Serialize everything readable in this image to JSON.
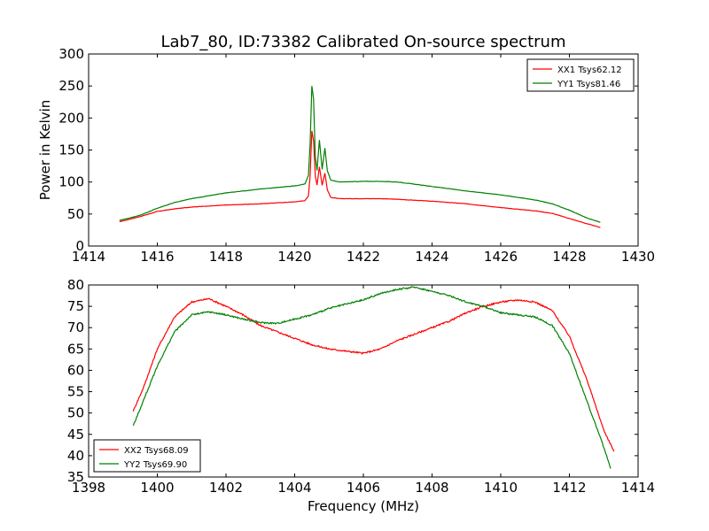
{
  "figure_title": "Lab7_80, ID:73382 Calibrated On-source spectrum",
  "colors": {
    "red": "#ff0000",
    "green": "#008000"
  },
  "chart_data": [
    {
      "type": "line",
      "title": "Lab7_80, ID:73382 Calibrated On-source spectrum",
      "xlabel": "",
      "ylabel": "Power in Kelvin",
      "xlim": [
        1414,
        1430
      ],
      "ylim": [
        0,
        300
      ],
      "xticks": [
        1414,
        1416,
        1418,
        1420,
        1422,
        1424,
        1426,
        1428,
        1430
      ],
      "yticks": [
        0,
        50,
        100,
        150,
        200,
        250,
        300
      ],
      "legend_position": "upper right",
      "grid": false,
      "series": [
        {
          "name": "XX1 Tsys62.12",
          "color": "#ff0000",
          "points": [
            [
              1414.9,
              38
            ],
            [
              1415.5,
              46
            ],
            [
              1416,
              54
            ],
            [
              1416.5,
              58
            ],
            [
              1417,
              61
            ],
            [
              1418,
              64
            ],
            [
              1419,
              66
            ],
            [
              1420,
              69
            ],
            [
              1420.3,
              71
            ],
            [
              1420.4,
              78
            ],
            [
              1420.45,
              110
            ],
            [
              1420.5,
              180
            ],
            [
              1420.55,
              165
            ],
            [
              1420.6,
              110
            ],
            [
              1420.65,
              95
            ],
            [
              1420.72,
              124
            ],
            [
              1420.8,
              95
            ],
            [
              1420.88,
              114
            ],
            [
              1420.95,
              88
            ],
            [
              1421.05,
              76
            ],
            [
              1421.3,
              74
            ],
            [
              1422,
              74
            ],
            [
              1422.5,
              74
            ],
            [
              1423,
              73
            ],
            [
              1424,
              70
            ],
            [
              1425,
              66
            ],
            [
              1426,
              60
            ],
            [
              1427,
              55
            ],
            [
              1427.5,
              51
            ],
            [
              1428,
              43
            ],
            [
              1428.5,
              35
            ],
            [
              1428.9,
              29
            ]
          ]
        },
        {
          "name": "YY1 Tsys81.46",
          "color": "#008000",
          "points": [
            [
              1414.9,
              40
            ],
            [
              1415.5,
              48
            ],
            [
              1416,
              59
            ],
            [
              1416.5,
              68
            ],
            [
              1417,
              74
            ],
            [
              1418,
              83
            ],
            [
              1419,
              89
            ],
            [
              1420,
              94
            ],
            [
              1420.3,
              97
            ],
            [
              1420.4,
              110
            ],
            [
              1420.45,
              160
            ],
            [
              1420.5,
              250
            ],
            [
              1420.55,
              230
            ],
            [
              1420.6,
              140
            ],
            [
              1420.65,
              118
            ],
            [
              1420.72,
              166
            ],
            [
              1420.8,
              120
            ],
            [
              1420.88,
              153
            ],
            [
              1420.95,
              118
            ],
            [
              1421.05,
              103
            ],
            [
              1421.3,
              100
            ],
            [
              1422,
              101
            ],
            [
              1422.5,
              101
            ],
            [
              1423,
              100
            ],
            [
              1424,
              93
            ],
            [
              1425,
              86
            ],
            [
              1426,
              80
            ],
            [
              1427,
              72
            ],
            [
              1427.5,
              66
            ],
            [
              1428,
              56
            ],
            [
              1428.5,
              44
            ],
            [
              1428.9,
              37
            ]
          ]
        }
      ]
    },
    {
      "type": "line",
      "title": "",
      "xlabel": "Frequency (MHz)",
      "ylabel": "",
      "xlim": [
        1398,
        1414
      ],
      "ylim": [
        35,
        80
      ],
      "xticks": [
        1398,
        1400,
        1402,
        1404,
        1406,
        1408,
        1410,
        1412,
        1414
      ],
      "yticks": [
        35,
        40,
        45,
        50,
        55,
        60,
        65,
        70,
        75,
        80
      ],
      "legend_position": "lower left",
      "grid": false,
      "series": [
        {
          "name": "XX2 Tsys68.09",
          "color": "#ff0000",
          "points": [
            [
              1399.3,
              50.5
            ],
            [
              1399.6,
              56
            ],
            [
              1400,
              65
            ],
            [
              1400.5,
              72.5
            ],
            [
              1401,
              76
            ],
            [
              1401.5,
              76.8
            ],
            [
              1402,
              75
            ],
            [
              1402.5,
              73
            ],
            [
              1403,
              70.5
            ],
            [
              1403.5,
              69
            ],
            [
              1404,
              67.5
            ],
            [
              1404.5,
              66
            ],
            [
              1405,
              65
            ],
            [
              1405.5,
              64.5
            ],
            [
              1406,
              64
            ],
            [
              1406.5,
              65
            ],
            [
              1407,
              67
            ],
            [
              1407.5,
              68.5
            ],
            [
              1408,
              70
            ],
            [
              1408.5,
              71.5
            ],
            [
              1409,
              73.5
            ],
            [
              1409.5,
              75
            ],
            [
              1410,
              76
            ],
            [
              1410.5,
              76.5
            ],
            [
              1411,
              76
            ],
            [
              1411.5,
              74
            ],
            [
              1412,
              68
            ],
            [
              1412.5,
              58
            ],
            [
              1413,
              46
            ],
            [
              1413.3,
              41
            ]
          ]
        },
        {
          "name": "YY2 Tsys69.90",
          "color": "#008000",
          "points": [
            [
              1399.3,
              47
            ],
            [
              1399.6,
              53
            ],
            [
              1400,
              61
            ],
            [
              1400.5,
              69
            ],
            [
              1401,
              73
            ],
            [
              1401.5,
              73.7
            ],
            [
              1402,
              73
            ],
            [
              1402.5,
              72
            ],
            [
              1403,
              71.2
            ],
            [
              1403.5,
              71
            ],
            [
              1404,
              72
            ],
            [
              1404.5,
              73
            ],
            [
              1405,
              74.5
            ],
            [
              1405.5,
              75.5
            ],
            [
              1406,
              76.5
            ],
            [
              1406.5,
              78
            ],
            [
              1407,
              79
            ],
            [
              1407.5,
              79.5
            ],
            [
              1408,
              78.5
            ],
            [
              1408.5,
              77.5
            ],
            [
              1409,
              76
            ],
            [
              1409.5,
              75
            ],
            [
              1410,
              73.5
            ],
            [
              1410.5,
              73
            ],
            [
              1411,
              72.5
            ],
            [
              1411.5,
              70.5
            ],
            [
              1412,
              64
            ],
            [
              1412.5,
              53
            ],
            [
              1413,
              42
            ],
            [
              1413.2,
              37
            ]
          ]
        }
      ]
    }
  ]
}
